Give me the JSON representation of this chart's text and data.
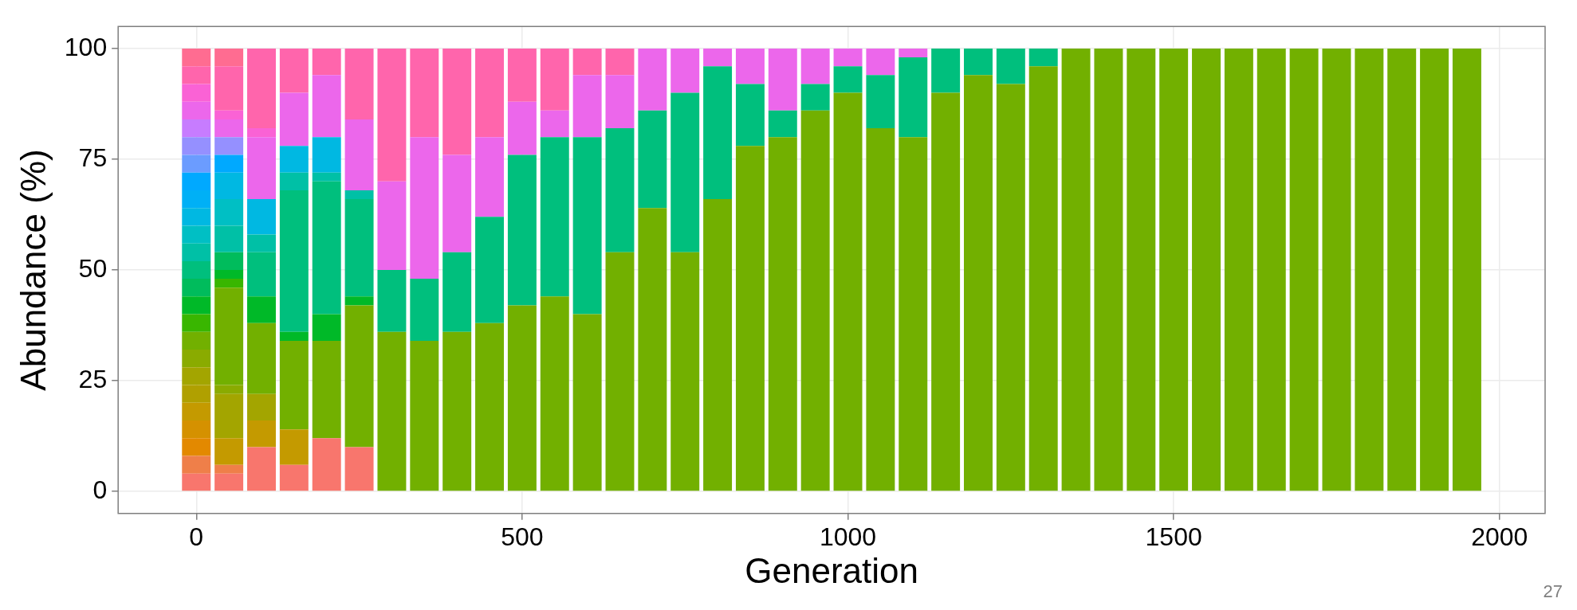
{
  "chart_data": {
    "type": "bar",
    "stacked": true,
    "xlabel": "Generation",
    "ylabel": "Abundance (%)",
    "annotations": [
      "27"
    ],
    "x": [
      0,
      50,
      100,
      150,
      200,
      250,
      300,
      350,
      400,
      450,
      500,
      550,
      600,
      650,
      700,
      750,
      800,
      850,
      900,
      950,
      1000,
      1050,
      1100,
      1150,
      1200,
      1250,
      1300,
      1350,
      1400,
      1450,
      1500,
      1550,
      1600,
      1650,
      1700,
      1750,
      1800,
      1850,
      1900,
      1950
    ],
    "xlim": [
      -120,
      2070
    ],
    "xticks": [
      0,
      500,
      1000,
      1500,
      2000
    ],
    "ylim": [
      -5,
      105
    ],
    "yticks": [
      0,
      25,
      50,
      75,
      100
    ],
    "grid": true,
    "series": [
      {
        "color": "#f8766d",
        "values": [
          4,
          4,
          10,
          6,
          12,
          10,
          null,
          null,
          null,
          null,
          null,
          null,
          null,
          null,
          null,
          null,
          null,
          null,
          null,
          null,
          null,
          null,
          null,
          null,
          null,
          null,
          null,
          null,
          null,
          null,
          null,
          null,
          null,
          null,
          null,
          null,
          null,
          null,
          null,
          null
        ]
      },
      {
        "color": "#ef7f49",
        "values": [
          4,
          2,
          null,
          null,
          null,
          null,
          null,
          null,
          null,
          null,
          null,
          null,
          null,
          null,
          null,
          null,
          null,
          null,
          null,
          null,
          null,
          null,
          null,
          null,
          null,
          null,
          null,
          null,
          null,
          null,
          null,
          null,
          null,
          null,
          null,
          null,
          null,
          null,
          null,
          null
        ]
      },
      {
        "color": "#e38900",
        "values": [
          4,
          null,
          null,
          null,
          null,
          null,
          null,
          null,
          null,
          null,
          null,
          null,
          null,
          null,
          null,
          null,
          null,
          null,
          null,
          null,
          null,
          null,
          null,
          null,
          null,
          null,
          null,
          null,
          null,
          null,
          null,
          null,
          null,
          null,
          null,
          null,
          null,
          null,
          null,
          null
        ]
      },
      {
        "color": "#d59100",
        "values": [
          4,
          null,
          null,
          null,
          null,
          null,
          null,
          null,
          null,
          null,
          null,
          null,
          null,
          null,
          null,
          null,
          null,
          null,
          null,
          null,
          null,
          null,
          null,
          null,
          null,
          null,
          null,
          null,
          null,
          null,
          null,
          null,
          null,
          null,
          null,
          null,
          null,
          null,
          null,
          null
        ]
      },
      {
        "color": "#c49a00",
        "values": [
          4,
          6,
          6,
          8,
          null,
          null,
          null,
          null,
          null,
          null,
          null,
          null,
          null,
          null,
          null,
          null,
          null,
          null,
          null,
          null,
          null,
          null,
          null,
          null,
          null,
          null,
          null,
          null,
          null,
          null,
          null,
          null,
          null,
          null,
          null,
          null,
          null,
          null,
          null,
          null
        ]
      },
      {
        "color": "#b0a000",
        "values": [
          4,
          null,
          null,
          null,
          null,
          null,
          null,
          null,
          null,
          null,
          null,
          null,
          null,
          null,
          null,
          null,
          null,
          null,
          null,
          null,
          null,
          null,
          null,
          null,
          null,
          null,
          null,
          null,
          null,
          null,
          null,
          null,
          null,
          null,
          null,
          null,
          null,
          null,
          null,
          null
        ]
      },
      {
        "color": "#a3a500",
        "values": [
          4,
          10,
          6,
          null,
          null,
          null,
          null,
          null,
          null,
          null,
          null,
          null,
          null,
          null,
          null,
          null,
          null,
          null,
          null,
          null,
          null,
          null,
          null,
          null,
          null,
          null,
          null,
          null,
          null,
          null,
          null,
          null,
          null,
          null,
          null,
          null,
          null,
          null,
          null,
          null
        ]
      },
      {
        "color": "#8aab00",
        "values": [
          4,
          2,
          null,
          null,
          null,
          null,
          null,
          null,
          null,
          null,
          null,
          null,
          null,
          null,
          null,
          null,
          null,
          null,
          null,
          null,
          null,
          null,
          null,
          null,
          null,
          null,
          null,
          null,
          null,
          null,
          null,
          null,
          null,
          null,
          null,
          null,
          null,
          null,
          null,
          null
        ]
      },
      {
        "color": "#72b000",
        "values": [
          4,
          22,
          16,
          20,
          22,
          32,
          36,
          34,
          36,
          38,
          42,
          44,
          40,
          54,
          64,
          54,
          66,
          78,
          80,
          86,
          90,
          82,
          80,
          90,
          94,
          92,
          96,
          100,
          100,
          100,
          100,
          100,
          100,
          100,
          100,
          100,
          100,
          100,
          100,
          100
        ]
      },
      {
        "color": "#39b600",
        "values": [
          4,
          2,
          null,
          null,
          null,
          null,
          null,
          null,
          null,
          null,
          null,
          null,
          null,
          null,
          null,
          null,
          null,
          null,
          null,
          null,
          null,
          null,
          null,
          null,
          null,
          null,
          null,
          null,
          null,
          null,
          null,
          null,
          null,
          null,
          null,
          null,
          null,
          null,
          null,
          null
        ]
      },
      {
        "color": "#00b928",
        "values": [
          4,
          2,
          6,
          2,
          6,
          2,
          null,
          null,
          null,
          null,
          null,
          null,
          null,
          null,
          null,
          null,
          null,
          null,
          null,
          null,
          null,
          null,
          null,
          null,
          null,
          null,
          null,
          null,
          null,
          null,
          null,
          null,
          null,
          null,
          null,
          null,
          null,
          null,
          null,
          null
        ]
      },
      {
        "color": "#00bc5c",
        "values": [
          4,
          4,
          null,
          null,
          null,
          null,
          null,
          null,
          null,
          null,
          null,
          null,
          null,
          null,
          null,
          null,
          null,
          null,
          null,
          null,
          null,
          null,
          null,
          null,
          null,
          null,
          null,
          null,
          null,
          null,
          null,
          null,
          null,
          null,
          null,
          null,
          null,
          null,
          null,
          null
        ]
      },
      {
        "color": "#00bf7d",
        "values": [
          4,
          null,
          10,
          32,
          30,
          22,
          14,
          14,
          18,
          24,
          34,
          36,
          40,
          28,
          22,
          36,
          30,
          14,
          6,
          6,
          6,
          12,
          18,
          10,
          6,
          8,
          4,
          null,
          null,
          null,
          null,
          null,
          null,
          null,
          null,
          null,
          null,
          null,
          null,
          null
        ]
      },
      {
        "color": "#00c0a6",
        "values": [
          4,
          6,
          4,
          4,
          2,
          2,
          null,
          null,
          null,
          null,
          null,
          null,
          null,
          null,
          null,
          null,
          null,
          null,
          null,
          null,
          null,
          null,
          null,
          null,
          null,
          null,
          null,
          null,
          null,
          null,
          null,
          null,
          null,
          null,
          null,
          null,
          null,
          null,
          null,
          null
        ]
      },
      {
        "color": "#00bfc4",
        "values": [
          4,
          6,
          null,
          null,
          null,
          null,
          null,
          null,
          null,
          null,
          null,
          null,
          null,
          null,
          null,
          null,
          null,
          null,
          null,
          null,
          null,
          null,
          null,
          null,
          null,
          null,
          null,
          null,
          null,
          null,
          null,
          null,
          null,
          null,
          null,
          null,
          null,
          null,
          null,
          null
        ]
      },
      {
        "color": "#00b8e2",
        "values": [
          4,
          6,
          8,
          6,
          8,
          null,
          null,
          null,
          null,
          null,
          null,
          null,
          null,
          null,
          null,
          null,
          null,
          null,
          null,
          null,
          null,
          null,
          null,
          null,
          null,
          null,
          null,
          null,
          null,
          null,
          null,
          null,
          null,
          null,
          null,
          null,
          null,
          null,
          null,
          null
        ]
      },
      {
        "color": "#00b0f6",
        "values": [
          4,
          null,
          null,
          null,
          null,
          null,
          null,
          null,
          null,
          null,
          null,
          null,
          null,
          null,
          null,
          null,
          null,
          null,
          null,
          null,
          null,
          null,
          null,
          null,
          null,
          null,
          null,
          null,
          null,
          null,
          null,
          null,
          null,
          null,
          null,
          null,
          null,
          null,
          null,
          null
        ]
      },
      {
        "color": "#00a9ff",
        "values": [
          4,
          4,
          null,
          null,
          null,
          null,
          null,
          null,
          null,
          null,
          null,
          null,
          null,
          null,
          null,
          null,
          null,
          null,
          null,
          null,
          null,
          null,
          null,
          null,
          null,
          null,
          null,
          null,
          null,
          null,
          null,
          null,
          null,
          null,
          null,
          null,
          null,
          null,
          null,
          null
        ]
      },
      {
        "color": "#6b9cff",
        "values": [
          4,
          null,
          null,
          null,
          null,
          null,
          null,
          null,
          null,
          null,
          null,
          null,
          null,
          null,
          null,
          null,
          null,
          null,
          null,
          null,
          null,
          null,
          null,
          null,
          null,
          null,
          null,
          null,
          null,
          null,
          null,
          null,
          null,
          null,
          null,
          null,
          null,
          null,
          null,
          null
        ]
      },
      {
        "color": "#9590ff",
        "values": [
          4,
          4,
          null,
          null,
          null,
          null,
          null,
          null,
          null,
          null,
          null,
          null,
          null,
          null,
          null,
          null,
          null,
          null,
          null,
          null,
          null,
          null,
          null,
          null,
          null,
          null,
          null,
          null,
          null,
          null,
          null,
          null,
          null,
          null,
          null,
          null,
          null,
          null,
          null,
          null
        ]
      },
      {
        "color": "#c77cff",
        "values": [
          4,
          null,
          null,
          null,
          null,
          null,
          null,
          null,
          null,
          null,
          null,
          null,
          null,
          null,
          null,
          null,
          null,
          null,
          null,
          null,
          null,
          null,
          null,
          null,
          null,
          null,
          null,
          null,
          null,
          null,
          null,
          null,
          null,
          null,
          null,
          null,
          null,
          null,
          null,
          null
        ]
      },
      {
        "color": "#ec67eb",
        "values": [
          4,
          4,
          14,
          12,
          14,
          16,
          20,
          32,
          22,
          18,
          12,
          6,
          14,
          12,
          14,
          10,
          4,
          8,
          14,
          8,
          4,
          6,
          2,
          null,
          null,
          null,
          null,
          null,
          null,
          null,
          null,
          null,
          null,
          null,
          null,
          null,
          null,
          null,
          null,
          null
        ]
      },
      {
        "color": "#fa62d5",
        "values": [
          4,
          2,
          2,
          null,
          null,
          null,
          null,
          null,
          null,
          null,
          null,
          null,
          null,
          null,
          null,
          null,
          null,
          null,
          null,
          null,
          null,
          null,
          null,
          null,
          null,
          null,
          null,
          null,
          null,
          null,
          null,
          null,
          null,
          null,
          null,
          null,
          null,
          null,
          null,
          null
        ]
      },
      {
        "color": "#ff65ac",
        "values": [
          4,
          10,
          18,
          10,
          6,
          16,
          30,
          20,
          24,
          20,
          12,
          14,
          6,
          6,
          null,
          null,
          null,
          null,
          null,
          null,
          null,
          null,
          null,
          null,
          null,
          null,
          null,
          null,
          null,
          null,
          null,
          null,
          null,
          null,
          null,
          null,
          null,
          null,
          null,
          null
        ]
      },
      {
        "color": "#ff6c91",
        "values": [
          4,
          4,
          null,
          null,
          null,
          null,
          null,
          null,
          null,
          null,
          null,
          null,
          null,
          null,
          null,
          null,
          null,
          null,
          null,
          null,
          null,
          null,
          null,
          null,
          null,
          null,
          null,
          null,
          null,
          null,
          null,
          null,
          null,
          null,
          null,
          null,
          null,
          null,
          null,
          null
        ]
      }
    ]
  }
}
